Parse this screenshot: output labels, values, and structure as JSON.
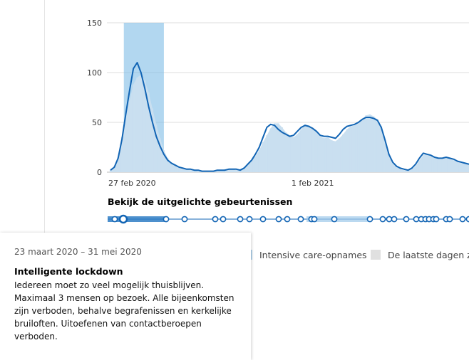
{
  "chart_data": {
    "type": "area",
    "x_tick_labels": [
      "27 feb 2020",
      "1 feb 2021"
    ],
    "y_ticks": [
      0,
      50,
      100,
      150
    ],
    "ylim": [
      0,
      150
    ],
    "highlight_period": {
      "from": "23 maart 2020",
      "to": "31 mei 2020"
    },
    "series": [
      {
        "name": "Intensive care-opnames",
        "style": "bars",
        "values": [
          2,
          6,
          15,
          35,
          58,
          72,
          88,
          95,
          98,
          92,
          80,
          64,
          48,
          34,
          22,
          14,
          9,
          6,
          4,
          3,
          3,
          2,
          2,
          1,
          1,
          1,
          1,
          1,
          2,
          2,
          3,
          3,
          3,
          2,
          3,
          5,
          8,
          12,
          16,
          22,
          30,
          37,
          44,
          49,
          49,
          45,
          40,
          37,
          35,
          38,
          43,
          48,
          47,
          44,
          40,
          36,
          34,
          35,
          32,
          31,
          34,
          38,
          43,
          46,
          47,
          49,
          53,
          57,
          58,
          56,
          53,
          46,
          32,
          18,
          10,
          6,
          3,
          2,
          2,
          3,
          6,
          12,
          17,
          18,
          17,
          15,
          13,
          13,
          14,
          14,
          12,
          10,
          9,
          9,
          8
        ]
      },
      {
        "name": "",
        "style": "line",
        "values": [
          2,
          5,
          14,
          33,
          58,
          82,
          104,
          110,
          100,
          84,
          66,
          50,
          36,
          26,
          18,
          12,
          9,
          7,
          5,
          4,
          3,
          3,
          2,
          2,
          1,
          1,
          1,
          1,
          2,
          2,
          2,
          3,
          3,
          3,
          2,
          4,
          8,
          12,
          18,
          25,
          35,
          45,
          48,
          47,
          43,
          40,
          38,
          36,
          37,
          41,
          45,
          47,
          46,
          44,
          41,
          37,
          36,
          36,
          35,
          34,
          38,
          43,
          46,
          47,
          48,
          50,
          53,
          55,
          55,
          54,
          52,
          45,
          32,
          18,
          10,
          6,
          4,
          3,
          2,
          4,
          8,
          14,
          19,
          18,
          17,
          15,
          14,
          14,
          15,
          14,
          13,
          11,
          10,
          9,
          8
        ]
      }
    ],
    "legend": [
      "Intensive care-opnames",
      "De laatste dagen zijn"
    ],
    "grid": true
  },
  "events": {
    "title": "Bekijk de uitgelichte gebeurtenissen",
    "marker_count": 36,
    "active_index": 0
  },
  "legend": {
    "item1": "Intensive care-opnames",
    "item2": "De laatste dagen zijn"
  },
  "tooltip": {
    "date": "23 maart 2020 – 31 mei 2020",
    "title": "Intelligente lockdown",
    "body": "Iedereen moet zo veel mogelijk thuisblijven. Maximaal 3 mensen op bezoek. Alle bijeenkomsten zijn verboden, behalve begrafenissen en kerkelijke bruiloften. Uitoefenen van contactberoepen verboden."
  },
  "colors": {
    "line": "#1164b4",
    "area": "#c9dff0",
    "highlight": "#7fbde6",
    "marker_stroke": "#1164b4",
    "legend_swatch1": "#b6d6ee",
    "legend_swatch2": "#e0e0e0"
  }
}
